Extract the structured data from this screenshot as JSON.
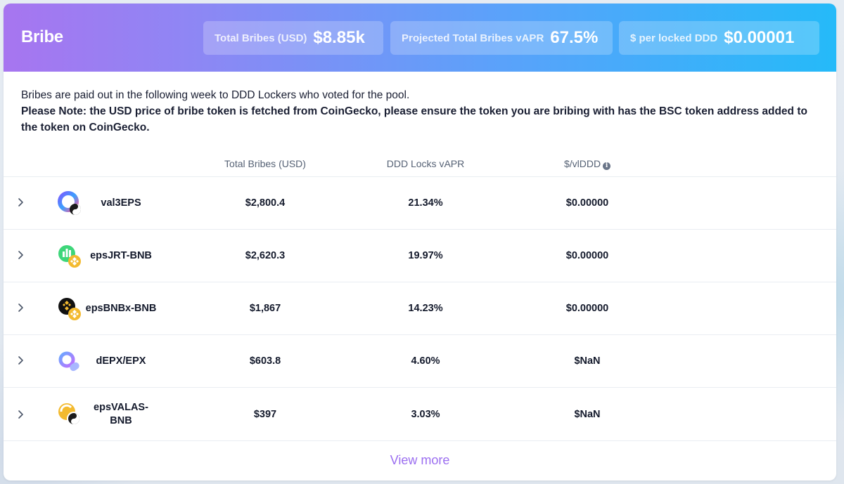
{
  "header": {
    "title": "Bribe",
    "stats": [
      {
        "label": "Total Bribes (USD)",
        "value": "$8.85k"
      },
      {
        "label": "Projected Total Bribes vAPR",
        "value": "67.5%"
      },
      {
        "label": "$ per locked DDD",
        "value": "$0.00001"
      }
    ]
  },
  "notes": {
    "line1": "Bribes are paid out in the following week to DDD Lockers who voted for the pool.",
    "line2": "Please Note: the USD price of bribe token is fetched from CoinGecko, please ensure the token you are bribing with has the BSC token address added to the token on CoinGecko."
  },
  "table": {
    "columns": [
      "Total Bribes (USD)",
      "DDD Locks vAPR",
      "$/vlDDD"
    ],
    "rows": [
      {
        "name": "val3EPS",
        "total_bribes": "$2,800.4",
        "vapr": "21.34%",
        "per_vlddd": "$0.00000"
      },
      {
        "name": "epsJRT-BNB",
        "total_bribes": "$2,620.3",
        "vapr": "19.97%",
        "per_vlddd": "$0.00000"
      },
      {
        "name": "epsBNBx-BNB",
        "total_bribes": "$1,867",
        "vapr": "14.23%",
        "per_vlddd": "$0.00000"
      },
      {
        "name": "dEPX/EPX",
        "total_bribes": "$603.8",
        "vapr": "4.60%",
        "per_vlddd": "$NaN"
      },
      {
        "name": "epsVALAS-BNB",
        "total_bribes": "$397",
        "vapr": "3.03%",
        "per_vlddd": "$NaN"
      }
    ]
  },
  "footer": {
    "view_more": "View more"
  },
  "colors": {
    "header_gradient_start": "#a775f0",
    "header_gradient_end": "#25baf9",
    "link": "#9b6ef0",
    "text": "#141a2c"
  }
}
